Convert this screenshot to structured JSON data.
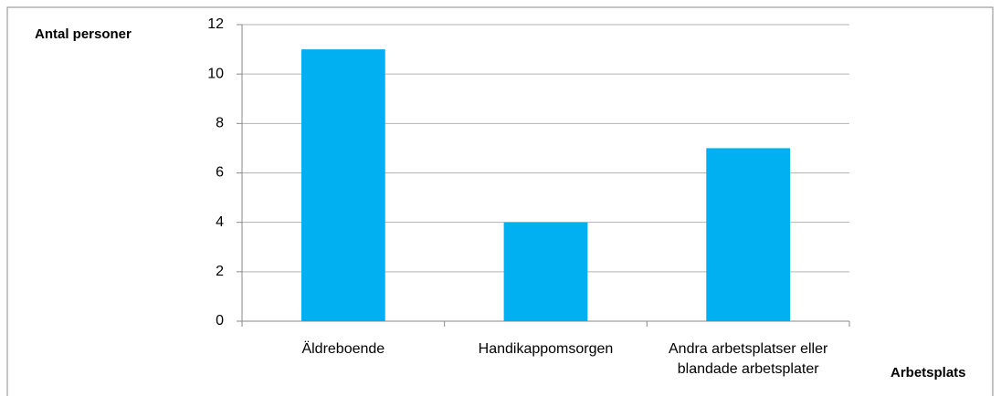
{
  "chart_data": {
    "type": "bar",
    "y_label": "Antal personer",
    "x_label": "Arbetsplats",
    "categories": [
      "Äldreboende",
      "Handikappomsorgen",
      "Andra arbetsplatser eller blandade arbetsplater"
    ],
    "values": [
      11,
      4,
      7
    ],
    "color": "#00b0f0",
    "ylim": [
      0,
      12
    ],
    "yticks": [
      0,
      2,
      4,
      6,
      8,
      10,
      12
    ],
    "grid": true
  }
}
